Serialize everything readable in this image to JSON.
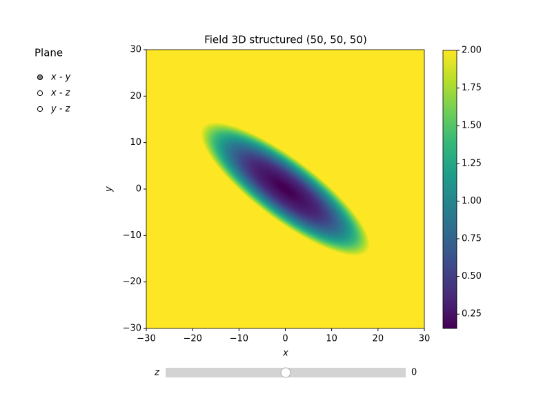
{
  "chart_data": {
    "type": "heatmap",
    "title": "Field 3D structured (50, 50, 50)",
    "xlabel": "x",
    "ylabel": "y",
    "xlim": [
      -30,
      30
    ],
    "ylim": [
      -30,
      30
    ],
    "xticks": [
      {
        "value": -30,
        "label": "−30"
      },
      {
        "value": -20,
        "label": "−20"
      },
      {
        "value": -10,
        "label": "−10"
      },
      0,
      10,
      20,
      30
    ],
    "yticks": [
      {
        "value": -30,
        "label": "−30"
      },
      {
        "value": -20,
        "label": "−20"
      },
      {
        "value": -10,
        "label": "−10"
      },
      0,
      10,
      20,
      30
    ],
    "colormap": "viridis",
    "colorbar": {
      "zlim": [
        0.155,
        2.0
      ],
      "ticks": [
        0.25,
        {
          "value": 0.5,
          "label": "0.50"
        },
        0.75,
        {
          "value": 1.0,
          "label": "1.00"
        },
        1.25,
        {
          "value": 1.5,
          "label": "1.50"
        },
        1.75,
        {
          "value": 2.0,
          "label": "2.00"
        }
      ]
    }
  },
  "radio": {
    "title": "Plane",
    "options": [
      "x - y",
      "x - z",
      "y - z"
    ],
    "selected": 0
  },
  "slider": {
    "label": "z",
    "value": 0,
    "range": [
      -30,
      30
    ]
  }
}
